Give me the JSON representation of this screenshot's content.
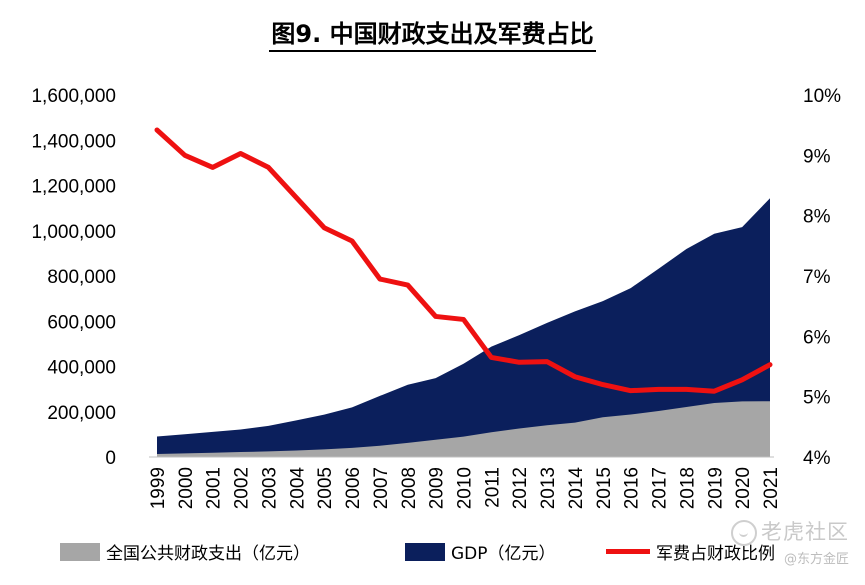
{
  "chart_data": {
    "type": "area",
    "title": "图9. 中国财政支出及军费占比",
    "x": [
      "1999",
      "2000",
      "2001",
      "2002",
      "2003",
      "2004",
      "2005",
      "2006",
      "2007",
      "2008",
      "2009",
      "2010",
      "2011",
      "2012",
      "2013",
      "2014",
      "2015",
      "2016",
      "2017",
      "2018",
      "2019",
      "2020",
      "2021"
    ],
    "y_left": {
      "ticks": [
        "0",
        "200,000",
        "400,000",
        "600,000",
        "800,000",
        "1,000,000",
        "1,200,000",
        "1,400,000",
        "1,600,000"
      ],
      "lim": [
        0,
        1600000
      ]
    },
    "y_right": {
      "ticks": [
        "4%",
        "5%",
        "6%",
        "7%",
        "8%",
        "9%",
        "10%"
      ],
      "lim": [
        4,
        10
      ]
    },
    "series": [
      {
        "name": "GDP（亿元）",
        "type": "area",
        "axis": "left",
        "color": "#0b1f5c",
        "values": [
          90564,
          100280,
          110863,
          121717,
          137422,
          161840,
          187319,
          219439,
          270092,
          319245,
          348518,
          412119,
          487940,
          538580,
          592963,
          643563,
          688858,
          746395,
          832036,
          919281,
          986515,
          1015986,
          1143670
        ]
      },
      {
        "name": "全国公共财政支出（亿元）",
        "type": "area",
        "axis": "left",
        "color": "#a6a6a6",
        "values": [
          13188,
          15887,
          18903,
          22053,
          24650,
          28487,
          33930,
          40423,
          49781,
          62593,
          76300,
          89874,
          109248,
          125953,
          140212,
          151786,
          175878,
          187755,
          203085,
          220904,
          238858,
          245679,
          246322
        ]
      },
      {
        "name": "军费占财政比例",
        "type": "line",
        "axis": "right",
        "color": "#ee1111",
        "values": [
          9.42,
          9.0,
          8.8,
          9.03,
          8.8,
          8.3,
          7.8,
          7.58,
          6.95,
          6.85,
          6.33,
          6.28,
          5.65,
          5.57,
          5.58,
          5.33,
          5.2,
          5.1,
          5.12,
          5.12,
          5.09,
          5.28,
          5.53
        ]
      }
    ],
    "legend_position": "bottom",
    "grid": false
  },
  "legend": {
    "spending": "全国公共财政支出（亿元）",
    "gdp": "GDP（亿元）",
    "ratio": "军费占财政比例"
  },
  "watermark": {
    "main": "老虎社区",
    "sub": "@东方金匠"
  }
}
